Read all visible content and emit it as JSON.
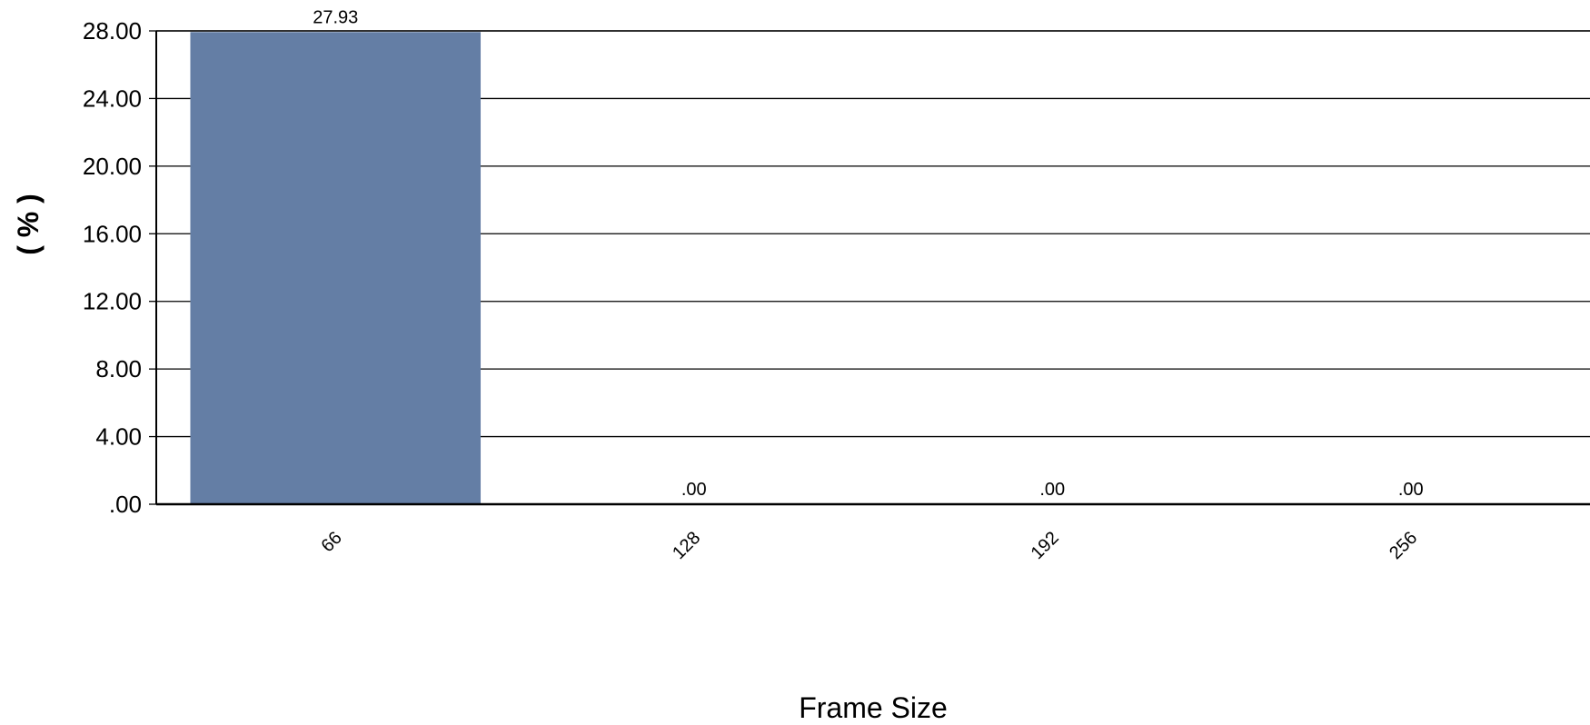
{
  "chart_data": {
    "type": "bar",
    "title": "",
    "xlabel": "Frame Size",
    "ylabel": "( % )",
    "categories": [
      "66",
      "128",
      "192",
      "256"
    ],
    "values": [
      27.93,
      0,
      0,
      0
    ],
    "data_labels": [
      "27.93",
      ".00",
      ".00",
      ".00"
    ],
    "y_ticks": [
      0,
      4,
      8,
      12,
      16,
      20,
      24,
      28
    ],
    "y_tick_labels": [
      ".00",
      "4.00",
      "8.00",
      "12.00",
      "16.00",
      "20.00",
      "24.00",
      "28.00"
    ],
    "ylim": [
      0,
      28
    ],
    "grid": true,
    "legend": "none",
    "bar_color": "#647ea5",
    "x_tick_rotation": "-45"
  }
}
